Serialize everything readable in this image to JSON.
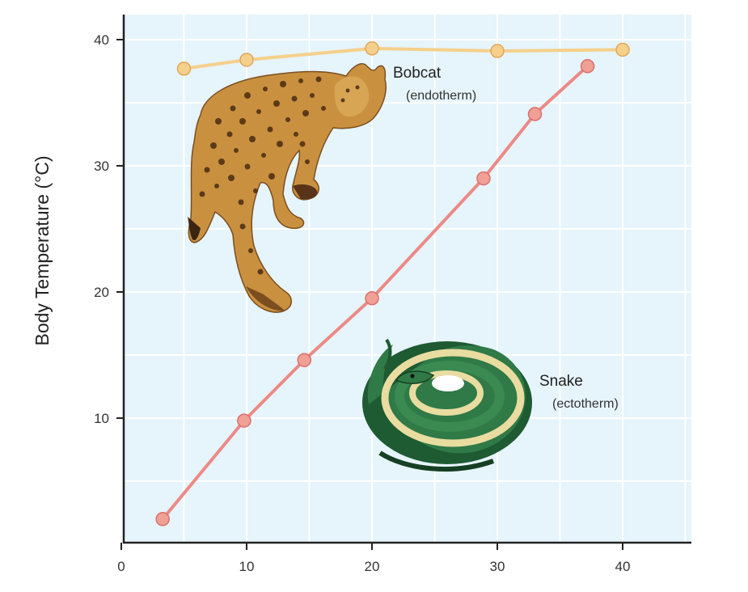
{
  "chart_data": {
    "type": "line",
    "ylabel": "Body Temperature (°C)",
    "xlabel": "",
    "x_ticks": [
      "0",
      "10",
      "20",
      "30",
      "40"
    ],
    "y_ticks": [
      "10",
      "20",
      "30",
      "40"
    ],
    "xlim": [
      0,
      45
    ],
    "ylim": [
      0,
      42
    ],
    "grid": true,
    "colors": {
      "background": "#e6f4fb",
      "grid": "#ffffff",
      "axis": "#222222",
      "bobcat": "#f5d08a",
      "snake_line": "#ec8a86",
      "snake_marker": "#f0a094"
    },
    "series": [
      {
        "name": "Bobcat",
        "annotation": "(endotherm)",
        "icon": "bobcat-illustration",
        "x": [
          5,
          10,
          20,
          30,
          40
        ],
        "y": [
          37.7,
          38.4,
          39.3,
          39.1,
          39.2
        ]
      },
      {
        "name": "Snake",
        "annotation": "(ectotherm)",
        "icon": "snake-illustration",
        "x": [
          3.3,
          9.8,
          14.6,
          20,
          28.9,
          33,
          37.2
        ],
        "y": [
          2,
          9.8,
          14.6,
          19.5,
          29,
          34.1,
          37.9
        ]
      }
    ]
  }
}
